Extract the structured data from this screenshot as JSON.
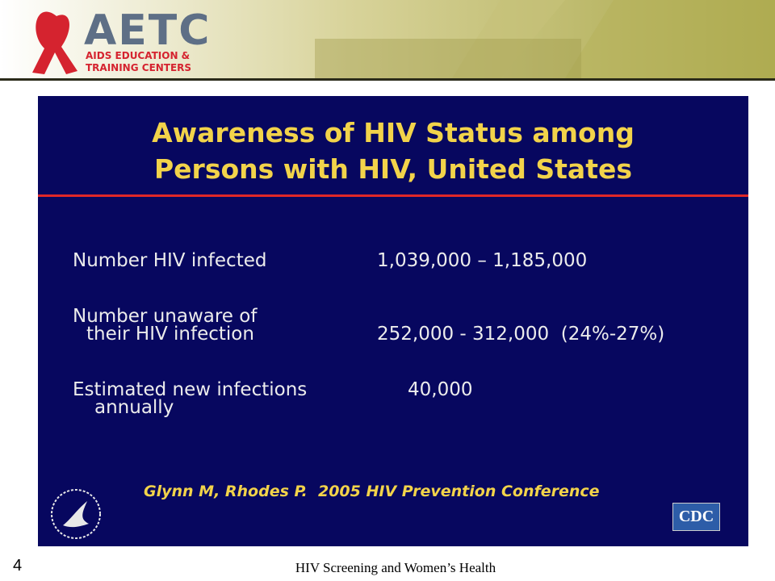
{
  "header": {
    "logo": {
      "title": "AETC",
      "line1": "AIDS EDUCATION &",
      "line2": "TRAINING CENTERS"
    }
  },
  "slide": {
    "title": [
      "Awareness of HIV Status among",
      "Persons with HIV, United States"
    ],
    "rows": [
      {
        "label": [
          "Number HIV infected"
        ],
        "value": "1,039,000 – 1,185,000"
      },
      {
        "label": [
          "Number unaware of",
          "their HIV infection"
        ],
        "value": "252,000 - 312,000  (24%-27%)"
      },
      {
        "label": [
          "Estimated new infections",
          "annually"
        ],
        "value": "40,000"
      }
    ],
    "citation": "Glynn M, Rhodes P.  2005 HIV Prevention Conference",
    "badge": "CDC"
  },
  "footer": {
    "page_number": "4",
    "text": "HIV Screening and Women’s Health"
  }
}
